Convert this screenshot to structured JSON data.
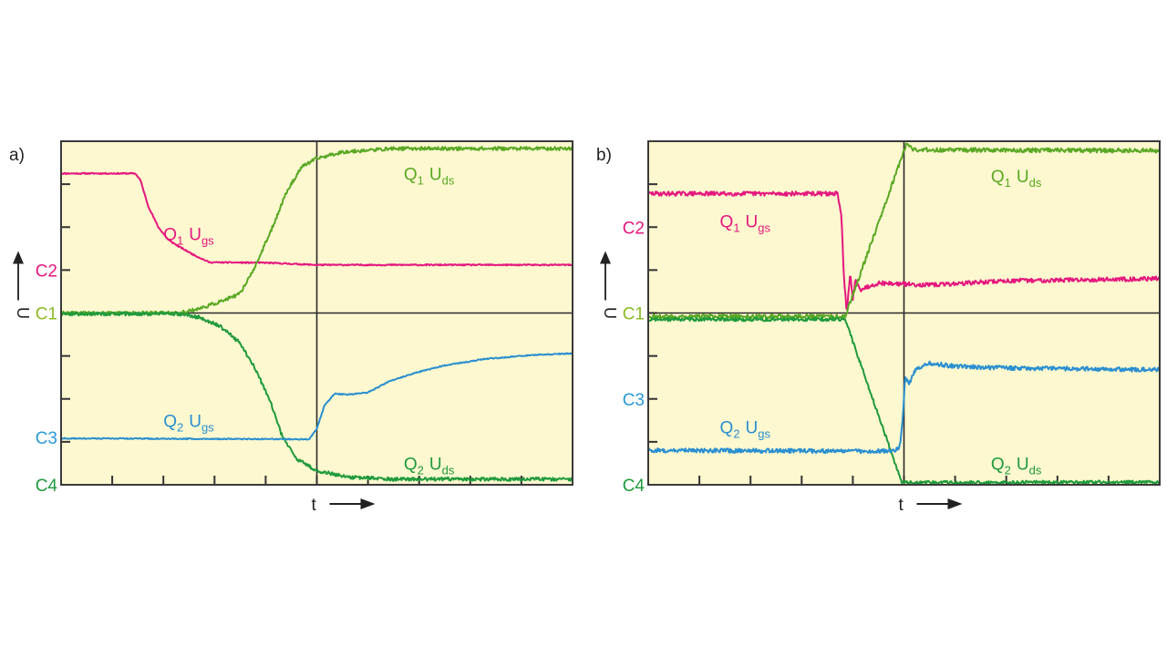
{
  "chart_data": [
    {
      "id": "a",
      "type": "line",
      "panel_label": "a)",
      "ylabel": "U",
      "xlabel": "t",
      "xlim": [
        0,
        10
      ],
      "ylim": [
        0,
        8
      ],
      "x_divisions": 10,
      "y_divisions": 8,
      "grid": "center-crosshair",
      "background": "#fdf8cf",
      "channel_markers": [
        {
          "label": "C2",
          "y": 5.0,
          "color": "#e4177f"
        },
        {
          "label": "C1",
          "y": 4.0,
          "color": "#8dbb26"
        },
        {
          "label": "C3",
          "y": 1.1,
          "color": "#2a9ad8"
        },
        {
          "label": "C4",
          "y": 0.0,
          "color": "#1f9a3c"
        }
      ],
      "series": [
        {
          "name": "Q1 Ugs",
          "label_main": "Q",
          "label_sub1": "1",
          "label_u": "U",
          "label_sub2": "gs",
          "color": "#e4177f",
          "noise": 0.015,
          "label_pos": [
            2.0,
            5.7
          ],
          "points": [
            [
              0,
              7.25
            ],
            [
              1.45,
              7.25
            ],
            [
              1.55,
              7.1
            ],
            [
              1.7,
              6.5
            ],
            [
              1.9,
              6.0
            ],
            [
              2.1,
              5.7
            ],
            [
              2.3,
              5.55
            ],
            [
              2.6,
              5.35
            ],
            [
              2.9,
              5.18
            ],
            [
              4.0,
              5.17
            ],
            [
              5.0,
              5.12
            ],
            [
              7.0,
              5.12
            ],
            [
              10,
              5.12
            ]
          ]
        },
        {
          "name": "Q1 Uds",
          "label_main": "Q",
          "label_sub1": "1",
          "label_u": "U",
          "label_sub2": "ds",
          "color": "#5aa826",
          "noise": 0.04,
          "label_pos": [
            6.7,
            7.1
          ],
          "points": [
            [
              0,
              4.0
            ],
            [
              2.3,
              4.0
            ],
            [
              2.7,
              4.1
            ],
            [
              3.2,
              4.3
            ],
            [
              3.5,
              4.45
            ],
            [
              3.8,
              5.1
            ],
            [
              4.1,
              5.9
            ],
            [
              4.4,
              6.8
            ],
            [
              4.7,
              7.4
            ],
            [
              5.0,
              7.6
            ],
            [
              5.5,
              7.75
            ],
            [
              6.5,
              7.83
            ],
            [
              10,
              7.83
            ]
          ]
        },
        {
          "name": "Q2 Uds",
          "label_main": "Q",
          "label_sub1": "2",
          "label_u": "U",
          "label_sub2": "ds",
          "color": "#1f9a3c",
          "noise": 0.04,
          "label_pos": [
            6.7,
            0.35
          ],
          "points": [
            [
              0,
              3.98
            ],
            [
              2.3,
              3.98
            ],
            [
              2.7,
              3.9
            ],
            [
              3.1,
              3.7
            ],
            [
              3.5,
              3.3
            ],
            [
              3.8,
              2.7
            ],
            [
              4.1,
              1.9
            ],
            [
              4.3,
              1.2
            ],
            [
              4.6,
              0.6
            ],
            [
              5.0,
              0.33
            ],
            [
              5.6,
              0.18
            ],
            [
              6.5,
              0.13
            ],
            [
              10,
              0.13
            ]
          ]
        },
        {
          "name": "Q2 Ugs",
          "label_main": "Q",
          "label_sub1": "2",
          "label_u": "U",
          "label_sub2": "gs",
          "color": "#2a8fd0",
          "noise": 0.012,
          "label_pos": [
            2.0,
            1.35
          ],
          "points": [
            [
              0,
              1.08
            ],
            [
              4.85,
              1.06
            ],
            [
              5.0,
              1.3
            ],
            [
              5.15,
              1.85
            ],
            [
              5.35,
              2.12
            ],
            [
              5.6,
              2.1
            ],
            [
              6.0,
              2.15
            ],
            [
              6.4,
              2.4
            ],
            [
              6.9,
              2.6
            ],
            [
              7.5,
              2.78
            ],
            [
              8.3,
              2.93
            ],
            [
              9.2,
              3.02
            ],
            [
              10,
              3.06
            ]
          ]
        }
      ]
    },
    {
      "id": "b",
      "type": "line",
      "panel_label": "b)",
      "ylabel": "U",
      "xlabel": "t",
      "xlim": [
        0,
        10
      ],
      "ylim": [
        0,
        8
      ],
      "x_divisions": 10,
      "y_divisions": 8,
      "grid": "center-crosshair",
      "background": "#fdf8cf",
      "channel_markers": [
        {
          "label": "C2",
          "y": 6.0,
          "color": "#e4177f"
        },
        {
          "label": "C1",
          "y": 4.0,
          "color": "#8dbb26"
        },
        {
          "label": "C3",
          "y": 2.0,
          "color": "#2a9ad8"
        },
        {
          "label": "C4",
          "y": 0.0,
          "color": "#1f9a3c"
        }
      ],
      "series": [
        {
          "name": "Q1 Ugs",
          "label_main": "Q",
          "label_sub1": "1",
          "label_u": "U",
          "label_sub2": "gs",
          "color": "#e4177f",
          "noise": 0.05,
          "label_pos": [
            1.4,
            6.0
          ],
          "points": [
            [
              0,
              6.78
            ],
            [
              3.7,
              6.78
            ],
            [
              3.78,
              6.2
            ],
            [
              3.82,
              5.0
            ],
            [
              3.88,
              4.0
            ],
            [
              3.95,
              4.9
            ],
            [
              4.0,
              4.3
            ],
            [
              4.05,
              4.8
            ],
            [
              4.15,
              4.55
            ],
            [
              4.5,
              4.7
            ],
            [
              5.5,
              4.65
            ],
            [
              7.0,
              4.75
            ],
            [
              10,
              4.8
            ]
          ]
        },
        {
          "name": "Q1 Uds",
          "label_main": "Q",
          "label_sub1": "1",
          "label_u": "U",
          "label_sub2": "ds",
          "color": "#5aa826",
          "noise": 0.05,
          "label_pos": [
            6.7,
            7.05
          ],
          "points": [
            [
              0,
              3.92
            ],
            [
              3.85,
              3.92
            ],
            [
              5.05,
              7.95
            ],
            [
              5.2,
              7.8
            ],
            [
              10,
              7.78
            ]
          ]
        },
        {
          "name": "Q2 Uds",
          "label_main": "Q",
          "label_sub1": "2",
          "label_u": "U",
          "label_sub2": "ds",
          "color": "#1f9a3c",
          "noise": 0.04,
          "label_pos": [
            6.7,
            0.35
          ],
          "points": [
            [
              0,
              3.85
            ],
            [
              3.85,
              3.85
            ],
            [
              4.95,
              0.08
            ],
            [
              5.05,
              0.05
            ],
            [
              10,
              0.06
            ]
          ]
        },
        {
          "name": "Q2 Ugs",
          "label_main": "Q",
          "label_sub1": "2",
          "label_u": "U",
          "label_sub2": "gs",
          "color": "#2a8fd0",
          "noise": 0.05,
          "label_pos": [
            1.4,
            1.2
          ],
          "points": [
            [
              0,
              0.8
            ],
            [
              4.8,
              0.78
            ],
            [
              4.92,
              0.9
            ],
            [
              4.98,
              1.6
            ],
            [
              5.02,
              2.5
            ],
            [
              5.1,
              2.35
            ],
            [
              5.2,
              2.65
            ],
            [
              5.5,
              2.83
            ],
            [
              6.0,
              2.76
            ],
            [
              7.0,
              2.72
            ],
            [
              10,
              2.68
            ]
          ]
        }
      ]
    }
  ]
}
